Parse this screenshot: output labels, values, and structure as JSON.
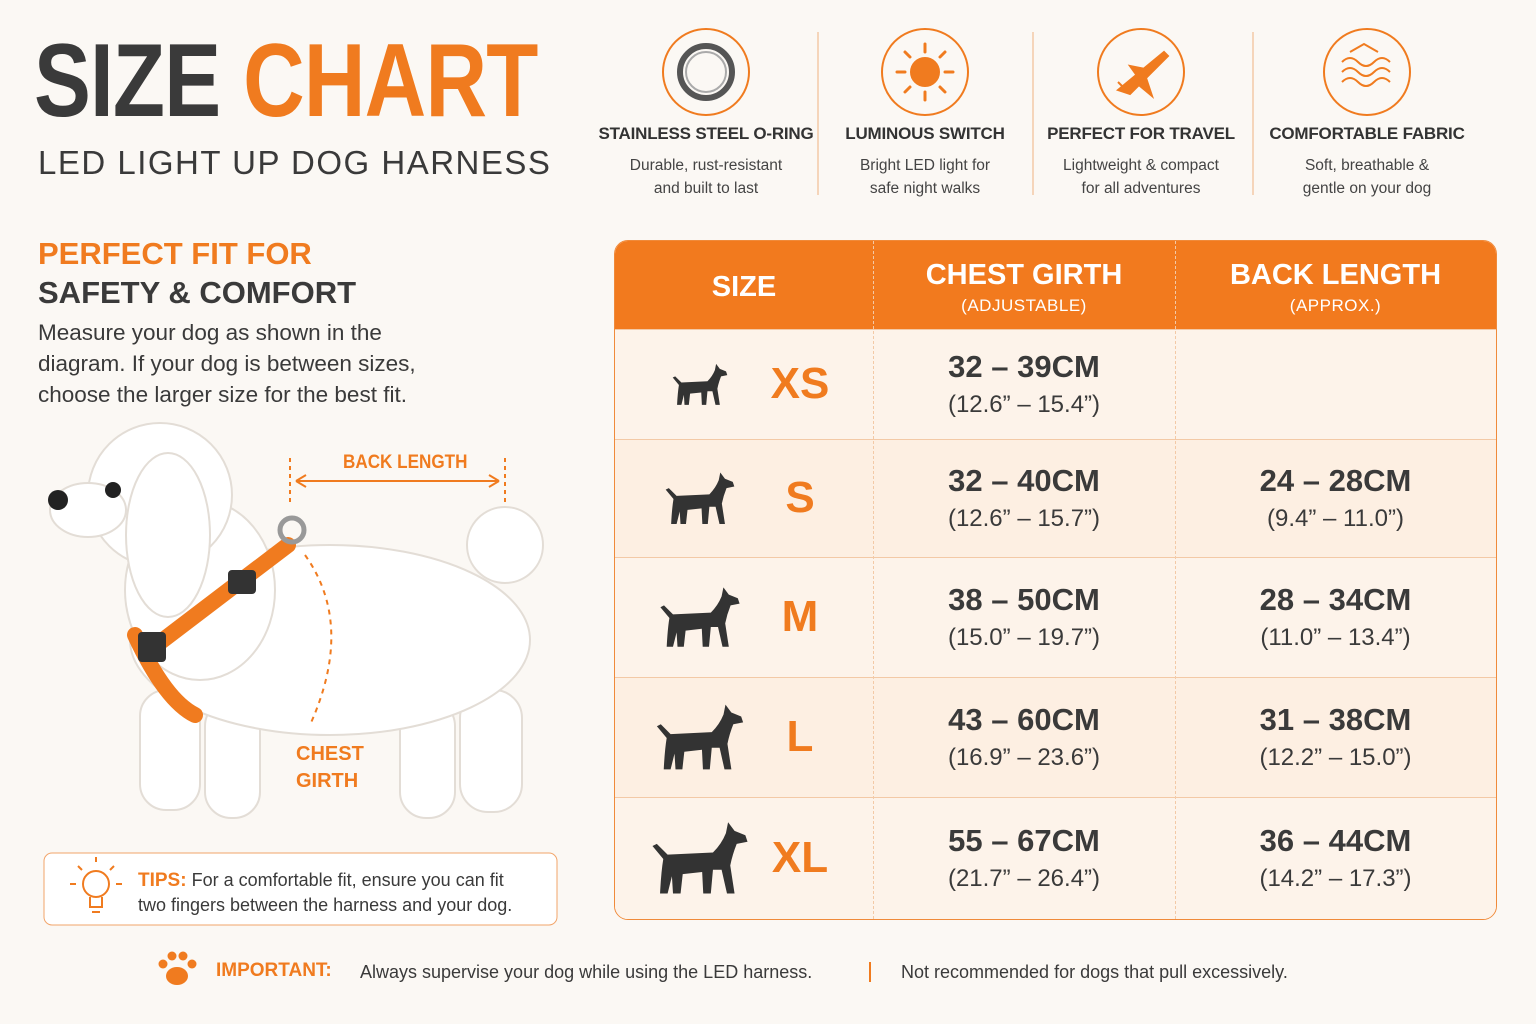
{
  "header": {
    "title_dark": "SIZE",
    "title_accent": "CHART",
    "subtitle": "LED LIGHT UP DOG HARNESS"
  },
  "features": [
    {
      "title": "STAINLESS STEEL O-RING",
      "lines": [
        "Durable, rust-resistant",
        "and built to last"
      ]
    },
    {
      "title": "LUMINOUS SWITCH",
      "lines": [
        "Bright LED light for",
        "safe night walks"
      ]
    },
    {
      "title": "PERFECT FOR TRAVEL",
      "lines": [
        "Lightweight & compact",
        "for all adventures"
      ]
    },
    {
      "title": "COMFORTABLE FABRIC",
      "lines": [
        "Soft, breathable &",
        "gentle on your dog"
      ]
    }
  ],
  "fit": {
    "heading_accent": "PERFECT FIT FOR",
    "heading_dark": "SAFETY & COMFORT",
    "lines": [
      "Measure your dog as shown in the",
      "diagram. If your dog is between sizes,",
      "choose the larger size for the best fit."
    ]
  },
  "diagram": {
    "back_length": "BACK LENGTH",
    "chest_girth": [
      "CHEST",
      "GIRTH"
    ]
  },
  "tips": {
    "label": "TIPS:",
    "lines": [
      "For a comfortable fit, ensure you can fit",
      "two fingers between the harness and your dog."
    ]
  },
  "table": {
    "headers": [
      {
        "title": "SIZE"
      },
      {
        "title": "CHEST GIRTH",
        "sub": "(ADJUSTABLE)"
      },
      {
        "title": "BACK LENGTH",
        "sub": "(APPROX.)"
      }
    ],
    "rows": [
      {
        "size": "XS",
        "chest": {
          "cm": "32 – 39CM",
          "inch": "(12.6” – 15.4”)"
        }
      },
      {
        "size": "S",
        "chest": {
          "cm": "32 – 40CM",
          "inch": "(12.6” – 15.7”)"
        },
        "back": {
          "cm": "24 – 28CM",
          "inch": "(9.4” – 11.0”)"
        }
      },
      {
        "size": "M",
        "chest": {
          "cm": "38 – 50CM",
          "inch": "(15.0” – 19.7”)"
        },
        "back": {
          "cm": "28 – 34CM",
          "inch": "(11.0” – 13.4”)"
        }
      },
      {
        "size": "L",
        "chest": {
          "cm": "43 – 60CM",
          "inch": "(16.9” – 23.6”)"
        },
        "back": {
          "cm": "31 – 38CM",
          "inch": "(12.2” – 15.0”)"
        }
      },
      {
        "size": "XL",
        "chest": {
          "cm": "55 – 67CM",
          "inch": "(21.7” – 26.4”)"
        },
        "back": {
          "cm": "36 – 44CM",
          "inch": "(14.2” – 17.3”)"
        }
      }
    ]
  },
  "important": {
    "label": "IMPORTANT:",
    "text": "Always supervise your dog while using the LED harness.",
    "note": "Not recommended for dogs that pull excessively."
  }
}
